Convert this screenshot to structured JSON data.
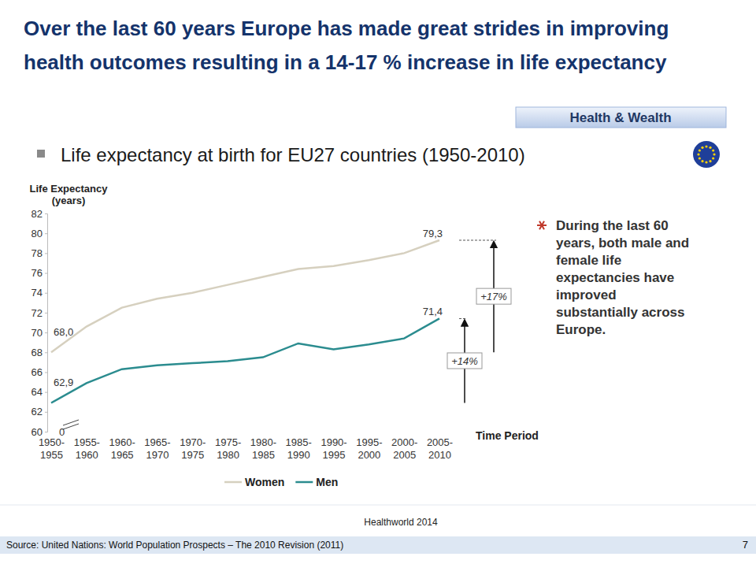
{
  "chart_data": {
    "type": "line",
    "title": "Over the last 60 years Europe has made great strides in improving health outcomes resulting in a 14-17 % increase in life expectancy",
    "badge": "Health & Wealth",
    "subtitle": "Life expectancy at birth for EU27 countries (1950-2010)",
    "y_label": "Life Expectancy (years)",
    "x_label": "Time Period",
    "categories": [
      "1950-1955",
      "1955-1960",
      "1960-1965",
      "1965-1970",
      "1970-1975",
      "1975-1980",
      "1980-1985",
      "1985-1990",
      "1990-1995",
      "1995-2000",
      "2000-2005",
      "2005-2010"
    ],
    "series": [
      {
        "name": "Women",
        "color": "#d6d0bf",
        "values": [
          68.0,
          70.6,
          72.5,
          73.4,
          74.0,
          74.8,
          75.6,
          76.4,
          76.7,
          77.3,
          78.0,
          79.3
        ],
        "value_labels": [
          "68,0",
          null,
          null,
          null,
          null,
          null,
          null,
          null,
          null,
          null,
          null,
          "79,3"
        ]
      },
      {
        "name": "Men",
        "color": "#2b8c8f",
        "values": [
          62.9,
          64.9,
          66.3,
          66.7,
          66.9,
          67.1,
          67.5,
          68.9,
          68.3,
          68.8,
          69.4,
          71.4
        ],
        "value_labels": [
          "62,9",
          null,
          null,
          null,
          null,
          null,
          null,
          null,
          null,
          null,
          null,
          "71,4"
        ]
      }
    ],
    "ylim": [
      60,
      82
    ],
    "yticks": [
      60,
      62,
      64,
      66,
      68,
      70,
      72,
      74,
      76,
      78,
      80,
      82
    ],
    "grid": false,
    "legend": "bottom",
    "axis_break_label": "0",
    "annotations": [
      "+17%",
      "+14%"
    ],
    "note": "During the last 60 years, both male and female life expectancies have improved substantially across Europe.",
    "footer": "Healthworld 2014",
    "source": "Source: United Nations: World Population Prospects – The 2010 Revision (2011)",
    "page": "7"
  }
}
